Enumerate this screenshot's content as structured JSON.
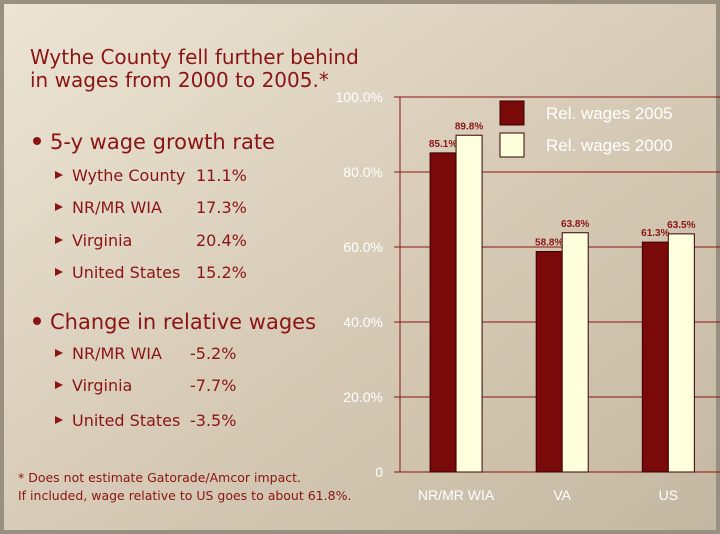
{
  "slide": {
    "title": [
      "Wythe County fell further behind",
      "in wages from 2000 to 2005.*"
    ],
    "sections": [
      {
        "heading": "5-y wage growth rate",
        "items": [
          {
            "label": "Wythe County",
            "value": "11.1%"
          },
          {
            "label": "NR/MR WIA",
            "value": "17.3%"
          },
          {
            "label": "Virginia",
            "value": "20.4%"
          },
          {
            "label": "United States",
            "value": "15.2%"
          }
        ]
      },
      {
        "heading": "Change in relative wages",
        "items": [
          {
            "label": "NR/MR WIA",
            "value": "-5.2%"
          },
          {
            "label": "Virginia",
            "value": "-7.7%"
          },
          {
            "label": "United States",
            "value": "-3.5%"
          }
        ]
      }
    ],
    "footnote": [
      "* Does not estimate Gatorade/Amcor impact.",
      "If included, wage relative to US goes to about 61.8%."
    ]
  },
  "chart_data": {
    "type": "bar",
    "categories": [
      "NR/MR WIA",
      "VA",
      "US"
    ],
    "series": [
      {
        "name": "Rel. wages 2005",
        "color": "#7a0a0a",
        "values": [
          85.1,
          58.8,
          61.3
        ],
        "value_labels": [
          "85.1%",
          "58.8%",
          "61.3%"
        ]
      },
      {
        "name": "Rel. wages 2000",
        "color": "#ffffdd",
        "values": [
          89.8,
          63.8,
          63.5
        ],
        "value_labels": [
          "89.8%",
          "63.8%",
          "63.5%"
        ]
      }
    ],
    "ylim": [
      0,
      100
    ],
    "yticks": [
      0,
      {
        "value": 20,
        "label": "20.0%"
      },
      {
        "value": 40,
        "label": "40.0%"
      },
      {
        "value": 60,
        "label": "60.0%"
      },
      {
        "value": 80,
        "label": "80.0%"
      },
      {
        "value": 100,
        "label": "100.0%"
      }
    ],
    "grid": true,
    "legend": "top-right"
  }
}
